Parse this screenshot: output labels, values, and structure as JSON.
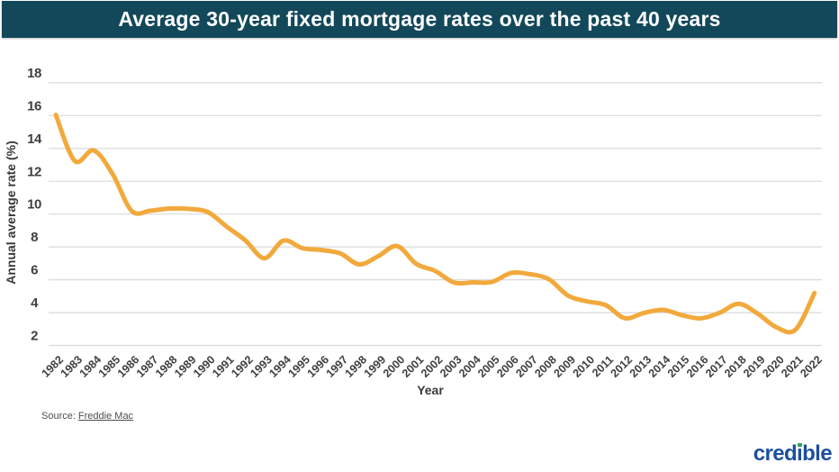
{
  "header": {
    "title": "Average 30-year fixed mortgage rates over the past 40 years",
    "bg_color": "#13485A"
  },
  "chart_data": {
    "type": "line",
    "title": "Average 30-year fixed mortgage rates over the past 40 years",
    "xlabel": "Year",
    "ylabel": "Annual average rate (%)",
    "series_name": "30-year fixed mortgage rate",
    "x": [
      1982,
      1983,
      1984,
      1985,
      1986,
      1987,
      1988,
      1989,
      1990,
      1991,
      1992,
      1993,
      1994,
      1995,
      1996,
      1997,
      1998,
      1999,
      2000,
      2001,
      2002,
      2003,
      2004,
      2005,
      2006,
      2007,
      2008,
      2009,
      2010,
      2011,
      2012,
      2013,
      2014,
      2015,
      2016,
      2017,
      2018,
      2019,
      2020,
      2021,
      2022
    ],
    "values": [
      16.04,
      13.24,
      13.88,
      12.43,
      10.19,
      10.21,
      10.34,
      10.32,
      10.13,
      9.25,
      8.39,
      7.31,
      8.38,
      7.93,
      7.81,
      7.6,
      6.94,
      7.44,
      8.05,
      6.97,
      6.54,
      5.83,
      5.84,
      5.87,
      6.41,
      6.34,
      6.03,
      5.04,
      4.69,
      4.45,
      3.66,
      3.98,
      4.17,
      3.85,
      3.65,
      3.99,
      4.54,
      3.94,
      3.1,
      2.96,
      5.2
    ],
    "ylim": [
      2,
      18
    ],
    "yticks": [
      2,
      4,
      6,
      8,
      10,
      12,
      14,
      16,
      18
    ],
    "grid": true,
    "legend": "none",
    "line_color": "#F2A93C",
    "grid_color": "#D9D9D9",
    "tick_color": "#3F3F3F"
  },
  "footer": {
    "source_label": "Source:",
    "source_link": "Freddie Mac"
  },
  "logo": {
    "part1": "cred",
    "i": "ı",
    "part2": "ble",
    "blue": "#1D4F9E",
    "green": "#2AA05A"
  }
}
